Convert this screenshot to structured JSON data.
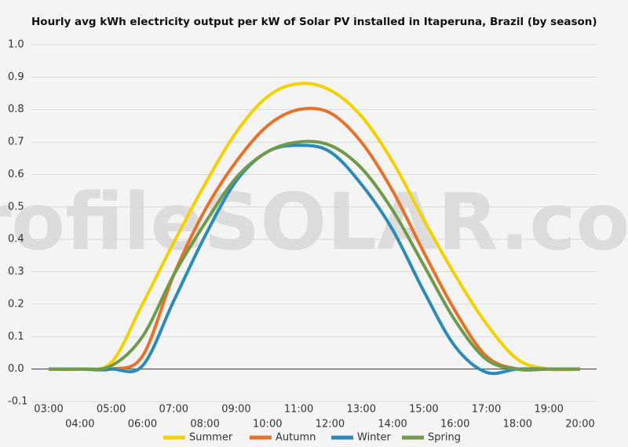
{
  "chart_data": {
    "type": "line",
    "title": "Hourly avg kWh electricity output per kW of Solar PV installed in Itaperuna, Brazil (by season)",
    "watermark": "profileSOLAR.com",
    "categories": [
      "03:00",
      "04:00",
      "05:00",
      "06:00",
      "07:00",
      "08:00",
      "09:00",
      "10:00",
      "11:00",
      "12:00",
      "13:00",
      "14:00",
      "15:00",
      "16:00",
      "17:00",
      "18:00",
      "19:00",
      "20:00"
    ],
    "series": [
      {
        "name": "Summer",
        "color": "#f5d000",
        "values": [
          0,
          0,
          0.02,
          0.2,
          0.39,
          0.57,
          0.73,
          0.84,
          0.88,
          0.86,
          0.78,
          0.64,
          0.46,
          0.29,
          0.14,
          0.03,
          0,
          0
        ]
      },
      {
        "name": "Autumn",
        "color": "#e8712a",
        "values": [
          0,
          0,
          0,
          0.04,
          0.29,
          0.49,
          0.64,
          0.75,
          0.8,
          0.79,
          0.7,
          0.55,
          0.36,
          0.18,
          0.04,
          0,
          0,
          0
        ]
      },
      {
        "name": "Winter",
        "color": "#2a8ab8",
        "values": [
          0,
          0,
          0,
          0.01,
          0.21,
          0.41,
          0.58,
          0.67,
          0.69,
          0.67,
          0.57,
          0.43,
          0.24,
          0.07,
          -0.01,
          0,
          0,
          0
        ]
      },
      {
        "name": "Spring",
        "color": "#6f9a4a",
        "values": [
          0,
          0,
          0.01,
          0.1,
          0.29,
          0.45,
          0.59,
          0.67,
          0.7,
          0.69,
          0.62,
          0.49,
          0.32,
          0.15,
          0.03,
          0,
          0,
          0
        ]
      }
    ],
    "ylim": [
      -0.1,
      1.0
    ],
    "yticks": [
      -0.1,
      {
        "value": 0,
        "label": "0.0"
      },
      0.1,
      0.2,
      0.3,
      0.4,
      0.5,
      0.6,
      0.7,
      0.8,
      0.9,
      {
        "value": 1,
        "label": "1.0"
      }
    ],
    "grid": true,
    "legend": "bottom"
  }
}
